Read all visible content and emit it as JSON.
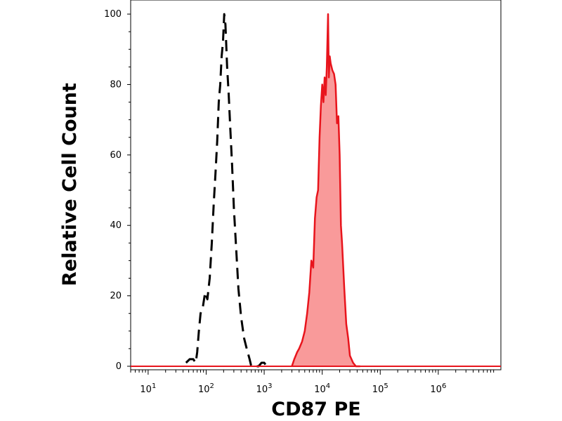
{
  "chart_data": {
    "type": "area",
    "xlabel": "CD87 PE",
    "ylabel": "Relative Cell Count",
    "x_scale": "log",
    "xlim": [
      5,
      12000000
    ],
    "ylim": [
      -1,
      104
    ],
    "x_ticks": [
      {
        "value": 10,
        "base": "10",
        "exp": "1"
      },
      {
        "value": 100,
        "base": "10",
        "exp": "2"
      },
      {
        "value": 1000,
        "base": "10",
        "exp": "3"
      },
      {
        "value": 10000,
        "base": "10",
        "exp": "4"
      },
      {
        "value": 100000,
        "base": "10",
        "exp": "5"
      },
      {
        "value": 1000000,
        "base": "10",
        "exp": "6"
      }
    ],
    "y_ticks": [
      "0",
      "20",
      "40",
      "60",
      "80",
      "100"
    ],
    "series": [
      {
        "style": "dashed",
        "color": "#000000",
        "fill": "none",
        "x": [
          45,
          52,
          60,
          66,
          70,
          75,
          80,
          88,
          96,
          105,
          115,
          125,
          135,
          145,
          155,
          165,
          175,
          185,
          195,
          205,
          215,
          230,
          245,
          260,
          280,
          300,
          330,
          360,
          400,
          450,
          500,
          560,
          600,
          700,
          800,
          900,
          1000,
          1100,
          1200
        ],
        "y": [
          1,
          2,
          2,
          1,
          4,
          10,
          15,
          17,
          21,
          19,
          25,
          35,
          46,
          55,
          64,
          75,
          80,
          88,
          92,
          100,
          97,
          85,
          77,
          68,
          57,
          45,
          33,
          22,
          14,
          8,
          5,
          2,
          0,
          0,
          0,
          1,
          1,
          0,
          0
        ]
      },
      {
        "style": "solid",
        "color": "#e8141c",
        "fill": "#f99a9a",
        "x": [
          3000,
          3300,
          3700,
          4000,
          4500,
          5000,
          5500,
          6000,
          6500,
          7000,
          7500,
          8000,
          8500,
          9000,
          9500,
          10000,
          10500,
          11000,
          11500,
          12000,
          12600,
          13000,
          13500,
          14000,
          15000,
          16000,
          17000,
          18000,
          19000,
          20000,
          21000,
          22000,
          24000,
          26000,
          28000,
          30000,
          34000,
          38000,
          45000
        ],
        "y": [
          0,
          2,
          4,
          5,
          7,
          10,
          15,
          21,
          30,
          28,
          42,
          48,
          50,
          65,
          74,
          80,
          75,
          82,
          77,
          85,
          100,
          82,
          88,
          86,
          84,
          83,
          80,
          69,
          71,
          60,
          40,
          35,
          22,
          12,
          8,
          3,
          1,
          0,
          0
        ]
      }
    ]
  }
}
